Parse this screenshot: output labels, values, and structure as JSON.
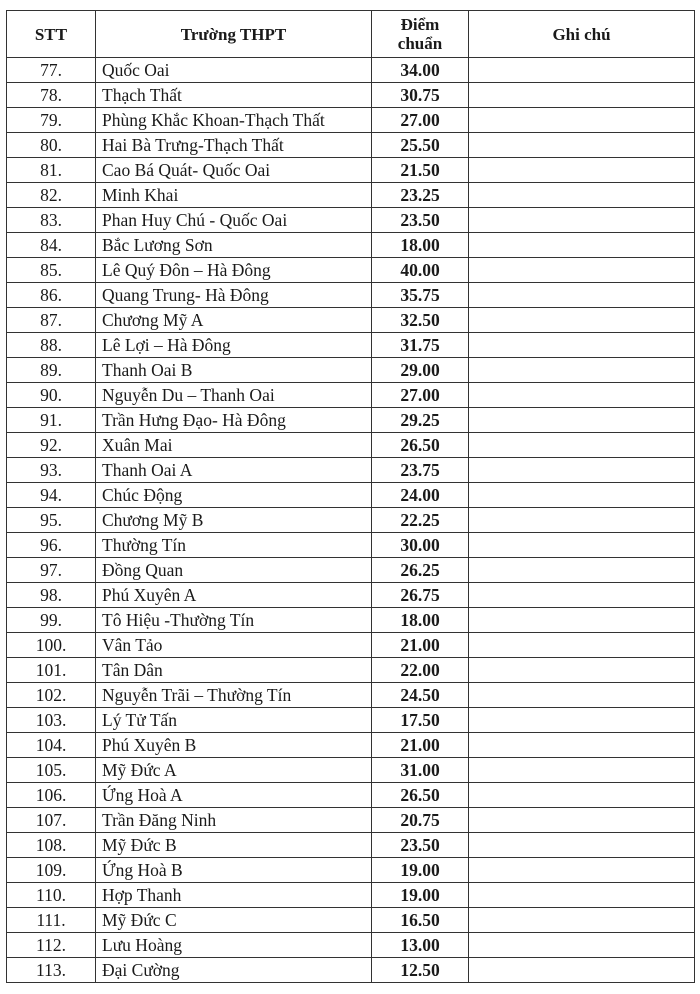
{
  "table": {
    "headers": {
      "stt": "STT",
      "school": "Trường THPT",
      "score_line1": "Điểm",
      "score_line2": "chuẩn",
      "note": "Ghi chú"
    },
    "rows": [
      {
        "stt": "77.",
        "school": "Quốc Oai",
        "score": "34.00",
        "note": ""
      },
      {
        "stt": "78.",
        "school": "Thạch Thất",
        "score": "30.75",
        "note": ""
      },
      {
        "stt": "79.",
        "school": "Phùng Khắc Khoan-Thạch Thất",
        "score": "27.00",
        "note": ""
      },
      {
        "stt": "80.",
        "school": "Hai Bà Trưng-Thạch Thất",
        "score": "25.50",
        "note": ""
      },
      {
        "stt": "81.",
        "school": "Cao Bá Quát- Quốc Oai",
        "score": "21.50",
        "note": ""
      },
      {
        "stt": "82.",
        "school": "Minh Khai",
        "score": "23.25",
        "note": ""
      },
      {
        "stt": "83.",
        "school": "Phan Huy Chú - Quốc Oai",
        "score": "23.50",
        "note": ""
      },
      {
        "stt": "84.",
        "school": "Bắc Lương Sơn",
        "score": "18.00",
        "note": ""
      },
      {
        "stt": "85.",
        "school": "Lê Quý Đôn – Hà Đông",
        "score": "40.00",
        "note": ""
      },
      {
        "stt": "86.",
        "school": "Quang Trung- Hà Đông",
        "score": "35.75",
        "note": ""
      },
      {
        "stt": "87.",
        "school": "Chương Mỹ A",
        "score": "32.50",
        "note": ""
      },
      {
        "stt": "88.",
        "school": "Lê Lợi – Hà Đông",
        "score": "31.75",
        "note": ""
      },
      {
        "stt": "89.",
        "school": "Thanh Oai B",
        "score": "29.00",
        "note": ""
      },
      {
        "stt": "90.",
        "school": "Nguyễn Du – Thanh Oai",
        "score": "27.00",
        "note": ""
      },
      {
        "stt": "91.",
        "school": "Trần Hưng Đạo- Hà Đông",
        "score": "29.25",
        "note": ""
      },
      {
        "stt": "92.",
        "school": "Xuân Mai",
        "score": "26.50",
        "note": ""
      },
      {
        "stt": "93.",
        "school": "Thanh Oai A",
        "score": "23.75",
        "note": ""
      },
      {
        "stt": "94.",
        "school": "Chúc Động",
        "score": "24.00",
        "note": ""
      },
      {
        "stt": "95.",
        "school": "Chương Mỹ B",
        "score": "22.25",
        "note": ""
      },
      {
        "stt": "96.",
        "school": "Thường Tín",
        "score": "30.00",
        "note": ""
      },
      {
        "stt": "97.",
        "school": "Đồng Quan",
        "score": "26.25",
        "note": ""
      },
      {
        "stt": "98.",
        "school": "Phú Xuyên A",
        "score": "26.75",
        "note": ""
      },
      {
        "stt": "99.",
        "school": "Tô Hiệu -Thường Tín",
        "score": "18.00",
        "note": ""
      },
      {
        "stt": "100.",
        "school": "Vân Tảo",
        "score": "21.00",
        "note": ""
      },
      {
        "stt": "101.",
        "school": "Tân Dân",
        "score": "22.00",
        "note": ""
      },
      {
        "stt": "102.",
        "school": "Nguyễn Trãi – Thường Tín",
        "score": "24.50",
        "note": ""
      },
      {
        "stt": "103.",
        "school": "Lý Tử Tấn",
        "score": "17.50",
        "note": ""
      },
      {
        "stt": "104.",
        "school": "Phú Xuyên B",
        "score": "21.00",
        "note": ""
      },
      {
        "stt": "105.",
        "school": "Mỹ Đức A",
        "score": "31.00",
        "note": ""
      },
      {
        "stt": "106.",
        "school": "Ứng Hoà A",
        "score": "26.50",
        "note": ""
      },
      {
        "stt": "107.",
        "school": "Trần Đăng Ninh",
        "score": "20.75",
        "note": ""
      },
      {
        "stt": "108.",
        "school": "Mỹ Đức B",
        "score": "23.50",
        "note": ""
      },
      {
        "stt": "109.",
        "school": "Ứng Hoà B",
        "score": "19.00",
        "note": ""
      },
      {
        "stt": "110.",
        "school": "Hợp Thanh",
        "score": "19.00",
        "note": ""
      },
      {
        "stt": "111.",
        "school": "Mỹ Đức C",
        "score": "16.50",
        "note": ""
      },
      {
        "stt": "112.",
        "school": "Lưu Hoàng",
        "score": "13.00",
        "note": ""
      },
      {
        "stt": "113.",
        "school": "Đại Cường",
        "score": "12.50",
        "note": ""
      }
    ]
  }
}
